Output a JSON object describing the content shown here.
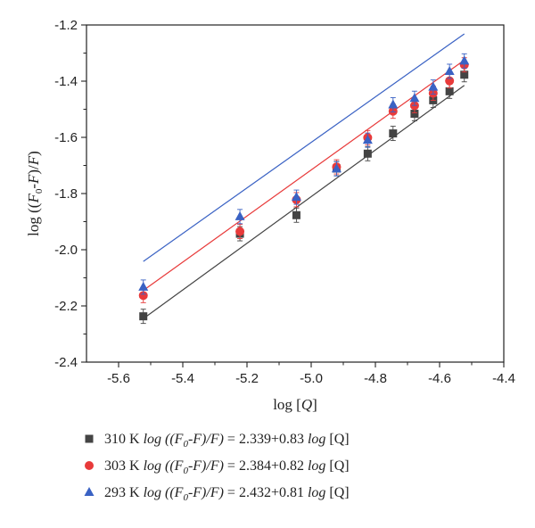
{
  "chart_data": {
    "type": "scatter",
    "xlabel": "log [Q]",
    "ylabel": "log ((F0-F)/F)",
    "xlim": [
      -5.7,
      -4.4
    ],
    "ylim": [
      -2.4,
      -1.2
    ],
    "xticks": [
      "-5.6",
      "-5.4",
      "-5.2",
      "-5.0",
      "-4.8",
      "-4.6",
      "-4.4"
    ],
    "yticks": [
      "-1.2",
      "-1.4",
      "-1.6",
      "-1.8",
      "-2.0",
      "-2.2",
      "-2.4"
    ],
    "x": [
      -5.523,
      -5.222,
      -5.046,
      -4.921,
      -4.824,
      -4.745,
      -4.678,
      -4.62,
      -4.569,
      -4.523
    ],
    "series": [
      {
        "name": "310 K",
        "marker": "square",
        "color": "#444444",
        "values": [
          -2.237,
          -1.943,
          -1.877,
          -1.711,
          -1.658,
          -1.586,
          -1.516,
          -1.468,
          -1.436,
          -1.377
        ],
        "fit": {
          "intercept": 2.339,
          "slope": 0.83
        },
        "legend": {
          "temp": "310 K",
          "pre": "log ((F",
          "sub": "0",
          "post": "-F)/F)",
          "eq": " = 2.339+0.83 ",
          "tail_it": "log",
          "tail": " [Q]"
        }
      },
      {
        "name": "303 K",
        "marker": "circle",
        "color": "#e83a3a",
        "values": [
          -2.163,
          -1.935,
          -1.822,
          -1.705,
          -1.601,
          -1.507,
          -1.487,
          -1.443,
          -1.399,
          -1.342
        ],
        "fit": {
          "intercept": 2.384,
          "slope": 0.82
        },
        "legend": {
          "temp": "303 K",
          "pre": "log ((F",
          "sub": "0",
          "post": "-F)/F)",
          "eq": " = 2.384+0.82 ",
          "tail_it": "log",
          "tail": " [Q]"
        }
      },
      {
        "name": "293 K",
        "marker": "triangle",
        "color": "#3a62c4",
        "values": [
          -2.133,
          -1.882,
          -1.813,
          -1.712,
          -1.61,
          -1.484,
          -1.461,
          -1.421,
          -1.365,
          -1.328
        ],
        "fit": {
          "intercept": 2.432,
          "slope": 0.81
        },
        "legend": {
          "temp": "293 K",
          "pre": "log ((F",
          "sub": "0",
          "post": "-F)/F)",
          "eq": " = 2.432+0.81 ",
          "tail_it": "log",
          "tail": " [Q]"
        }
      }
    ],
    "legend_position": "below"
  }
}
